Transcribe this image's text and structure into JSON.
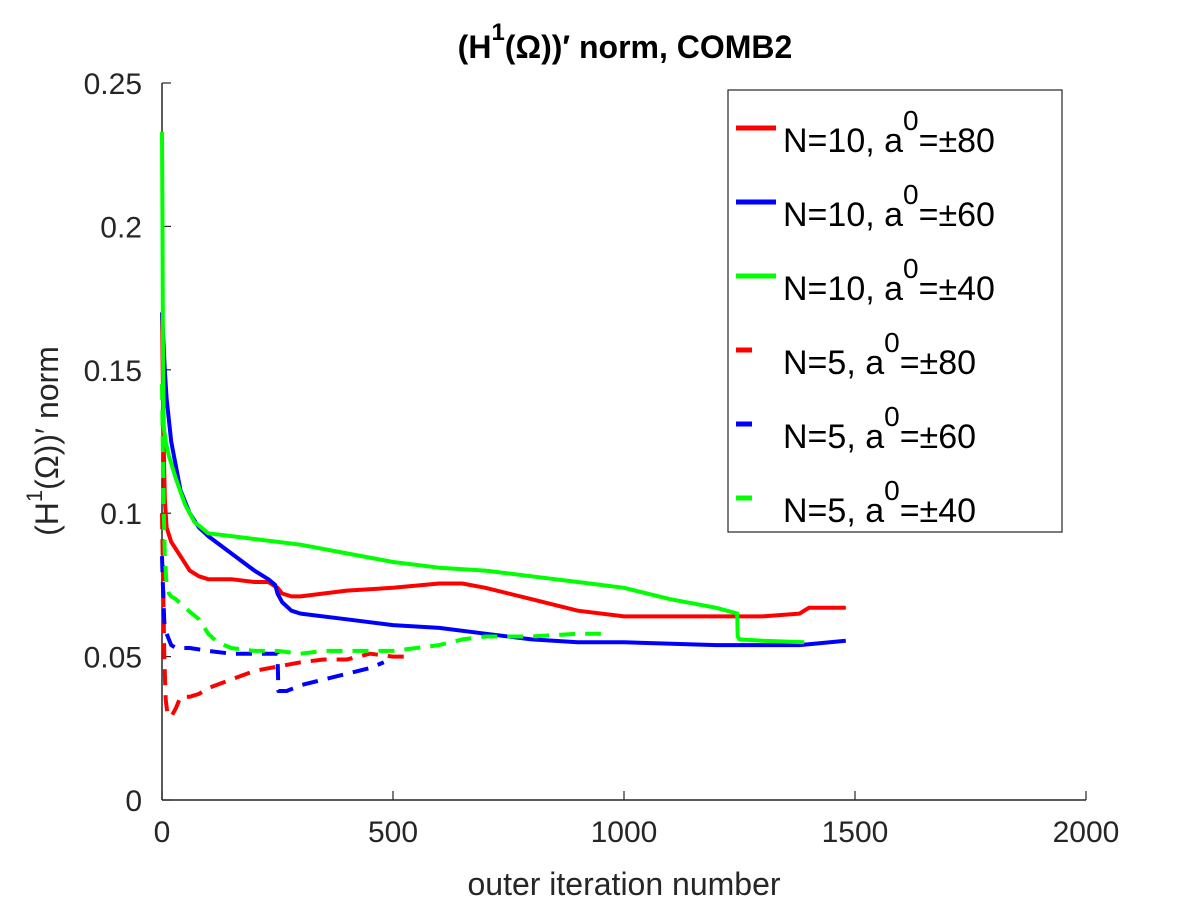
{
  "chart_data": {
    "type": "line",
    "title": {
      "prefix": "(H",
      "sup": "1",
      "suffix": "(Ω))′ norm, COMB2"
    },
    "xlabel": "outer iteration number",
    "ylabel": {
      "prefix": "(H",
      "sup": "1",
      "suffix": "(Ω))′ norm"
    },
    "xlim": [
      0,
      2000
    ],
    "ylim": [
      0,
      0.25
    ],
    "xticks": [
      0,
      500,
      1000,
      1500,
      2000
    ],
    "xtick_labels": [
      "0",
      "500",
      "1000",
      "1500",
      "2000"
    ],
    "yticks": [
      0,
      0.05,
      0.1,
      0.15,
      0.2,
      0.25
    ],
    "ytick_labels": [
      "0",
      "0.05",
      "0.1",
      "0.15",
      "0.2",
      "0.25"
    ],
    "legend_position": "top-right",
    "series": [
      {
        "name": "N=10, a0=±80",
        "label": {
          "prefix": "N=10, a",
          "sup": "0",
          "suffix": "=±80"
        },
        "color": "#ff0000",
        "style": "solid",
        "x": [
          0,
          3,
          6,
          10,
          20,
          40,
          60,
          80,
          100,
          150,
          200,
          230,
          250,
          260,
          280,
          300,
          400,
          500,
          600,
          650,
          700,
          800,
          900,
          1000,
          1100,
          1200,
          1300,
          1380,
          1390,
          1400,
          1480
        ],
        "y": [
          0.17,
          0.13,
          0.105,
          0.095,
          0.09,
          0.085,
          0.08,
          0.078,
          0.077,
          0.077,
          0.076,
          0.076,
          0.074,
          0.072,
          0.071,
          0.071,
          0.073,
          0.074,
          0.0755,
          0.0755,
          0.074,
          0.07,
          0.066,
          0.064,
          0.064,
          0.064,
          0.064,
          0.065,
          0.066,
          0.067,
          0.067
        ]
      },
      {
        "name": "N=10, a0=±60",
        "label": {
          "prefix": "N=10, a",
          "sup": "0",
          "suffix": "=±60"
        },
        "color": "#0000ff",
        "style": "solid",
        "x": [
          0,
          3,
          6,
          10,
          20,
          40,
          60,
          80,
          100,
          150,
          200,
          230,
          245,
          250,
          260,
          280,
          300,
          400,
          500,
          600,
          700,
          800,
          900,
          1000,
          1200,
          1380,
          1480
        ],
        "y": [
          0.17,
          0.16,
          0.15,
          0.14,
          0.125,
          0.108,
          0.1,
          0.095,
          0.092,
          0.086,
          0.08,
          0.077,
          0.075,
          0.072,
          0.069,
          0.066,
          0.065,
          0.063,
          0.061,
          0.06,
          0.058,
          0.056,
          0.055,
          0.055,
          0.054,
          0.054,
          0.0555
        ]
      },
      {
        "name": "N=10, a0=±40",
        "label": {
          "prefix": "N=10, a",
          "sup": "0",
          "suffix": "=±40"
        },
        "color": "#00ff00",
        "style": "solid",
        "x": [
          0,
          1,
          2,
          4,
          8,
          15,
          30,
          50,
          70,
          100,
          150,
          200,
          300,
          400,
          500,
          600,
          700,
          800,
          900,
          1000,
          1100,
          1200,
          1245,
          1246,
          1250,
          1300,
          1390
        ],
        "y": [
          0.233,
          0.2,
          0.16,
          0.13,
          0.125,
          0.12,
          0.112,
          0.103,
          0.097,
          0.093,
          0.092,
          0.091,
          0.089,
          0.086,
          0.083,
          0.081,
          0.08,
          0.078,
          0.076,
          0.074,
          0.07,
          0.067,
          0.065,
          0.057,
          0.056,
          0.0555,
          0.055
        ]
      },
      {
        "name": "N=5, a0=±80",
        "label": {
          "prefix": "N=5, a",
          "sup": "0",
          "suffix": "=±80"
        },
        "color": "#ff0000",
        "style": "dashed",
        "x": [
          0,
          2,
          5,
          8,
          12,
          20,
          30,
          40,
          60,
          80,
          100,
          150,
          200,
          300,
          350,
          400,
          450,
          500,
          530
        ],
        "y": [
          0.1,
          0.08,
          0.05,
          0.035,
          0.03,
          0.029,
          0.032,
          0.036,
          0.036,
          0.037,
          0.039,
          0.042,
          0.045,
          0.048,
          0.049,
          0.049,
          0.051,
          0.05,
          0.05
        ]
      },
      {
        "name": "N=5, a0=±60",
        "label": {
          "prefix": "N=5, a",
          "sup": "0",
          "suffix": "=±60"
        },
        "color": "#0000ff",
        "style": "dashed",
        "x": [
          0,
          2,
          5,
          10,
          15,
          20,
          30,
          60,
          100,
          150,
          200,
          250,
          252,
          270,
          300,
          350,
          400,
          450,
          480
        ],
        "y": [
          0.085,
          0.075,
          0.062,
          0.058,
          0.056,
          0.054,
          0.053,
          0.053,
          0.052,
          0.051,
          0.051,
          0.051,
          0.038,
          0.038,
          0.04,
          0.042,
          0.044,
          0.046,
          0.048
        ]
      },
      {
        "name": "N=5, a0=±40",
        "label": {
          "prefix": "N=5, a",
          "sup": "0",
          "suffix": "=±40"
        },
        "color": "#00ff00",
        "style": "dashed",
        "x": [
          0,
          2,
          4,
          6,
          10,
          15,
          20,
          30,
          50,
          80,
          100,
          120,
          150,
          200,
          250,
          300,
          350,
          400,
          500,
          600,
          650,
          700,
          750,
          800,
          900,
          950
        ],
        "y": [
          0.145,
          0.12,
          0.1,
          0.085,
          0.075,
          0.072,
          0.071,
          0.07,
          0.067,
          0.063,
          0.058,
          0.055,
          0.053,
          0.052,
          0.052,
          0.051,
          0.052,
          0.052,
          0.052,
          0.054,
          0.056,
          0.057,
          0.057,
          0.057,
          0.058,
          0.058
        ]
      }
    ]
  }
}
